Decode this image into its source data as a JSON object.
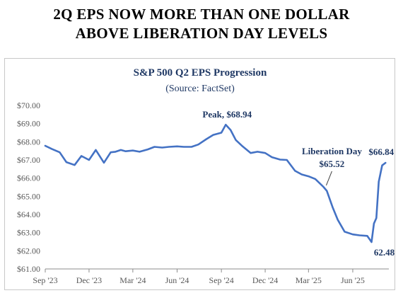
{
  "headline": {
    "line1": "2Q EPS NOW MORE THAN ONE DOLLAR",
    "line2": "ABOVE LIBERATION DAY LEVELS"
  },
  "chart_data": {
    "type": "line",
    "title": "S&P 500 Q2 EPS Progression",
    "subtitle": "(Source: FactSet)",
    "xlabel": "",
    "ylabel": "",
    "ylim": [
      61,
      70
    ],
    "y_ticks": [
      61,
      62,
      63,
      64,
      65,
      66,
      67,
      68,
      69,
      70
    ],
    "y_tick_labels": [
      "$61.00",
      "$62.00",
      "$63.00",
      "$64.00",
      "$65.00",
      "$66.00",
      "$67.00",
      "$68.00",
      "$69.00",
      "$70.00"
    ],
    "x_ticks": [
      "2023-09-01",
      "2023-12-01",
      "2024-03-01",
      "2024-06-01",
      "2024-09-01",
      "2024-12-01",
      "2025-03-01",
      "2025-06-01"
    ],
    "x_tick_labels": [
      "Sep '23",
      "Dec '23",
      "Mar '24",
      "Jun '24",
      "Sep '24",
      "Dec '24",
      "Mar '25",
      "Jun '25"
    ],
    "xlim": [
      "2023-09-01",
      "2025-08-15"
    ],
    "grid": false,
    "legend": "none",
    "colors": {
      "line": "#4472C4",
      "text": "#1F3864",
      "axis": "#8c8c8c"
    },
    "series": [
      {
        "x": [
          "2023-09-01",
          "2023-09-15",
          "2023-10-01",
          "2023-10-15",
          "2023-11-01",
          "2023-11-15",
          "2023-12-01",
          "2023-12-15",
          "2024-01-01",
          "2024-01-15",
          "2024-01-25",
          "2024-02-05",
          "2024-02-15",
          "2024-03-01",
          "2024-03-15",
          "2024-04-01",
          "2024-04-15",
          "2024-05-01",
          "2024-05-15",
          "2024-06-01",
          "2024-06-15",
          "2024-07-01",
          "2024-07-15",
          "2024-08-01",
          "2024-08-15",
          "2024-09-01",
          "2024-09-10",
          "2024-09-20",
          "2024-10-01",
          "2024-10-15",
          "2024-11-01",
          "2024-11-15",
          "2024-12-01",
          "2024-12-15",
          "2025-01-01",
          "2025-01-15",
          "2025-02-01",
          "2025-02-15",
          "2025-03-01",
          "2025-03-15",
          "2025-04-01",
          "2025-04-08",
          "2025-04-20",
          "2025-05-01",
          "2025-05-15",
          "2025-06-01",
          "2025-06-15",
          "2025-07-01",
          "2025-07-10",
          "2025-07-15",
          "2025-07-20",
          "2025-07-25",
          "2025-08-01",
          "2025-08-08"
        ],
        "values": [
          67.78,
          67.6,
          67.42,
          66.88,
          66.72,
          67.22,
          67.0,
          67.55,
          66.85,
          67.42,
          67.45,
          67.55,
          67.48,
          67.52,
          67.45,
          67.58,
          67.72,
          67.68,
          67.72,
          67.75,
          67.72,
          67.72,
          67.85,
          68.15,
          68.38,
          68.5,
          68.94,
          68.65,
          68.1,
          67.75,
          67.38,
          67.45,
          67.38,
          67.15,
          67.02,
          67.0,
          66.4,
          66.2,
          66.1,
          65.95,
          65.52,
          65.3,
          64.4,
          63.7,
          63.05,
          62.9,
          62.85,
          62.82,
          62.48,
          63.5,
          63.8,
          65.8,
          66.7,
          66.84
        ]
      }
    ],
    "annotations": [
      {
        "text": "Peak, $68.94",
        "x": "2024-09-10",
        "y": 68.94
      },
      {
        "text": "Liberation Day",
        "text2": "$65.52",
        "x": "2025-04-01",
        "y": 65.52
      },
      {
        "text": "$66.84",
        "x": "2025-08-08",
        "y": 66.84
      },
      {
        "text": "62.48",
        "x": "2025-07-10",
        "y": 62.48
      }
    ]
  }
}
